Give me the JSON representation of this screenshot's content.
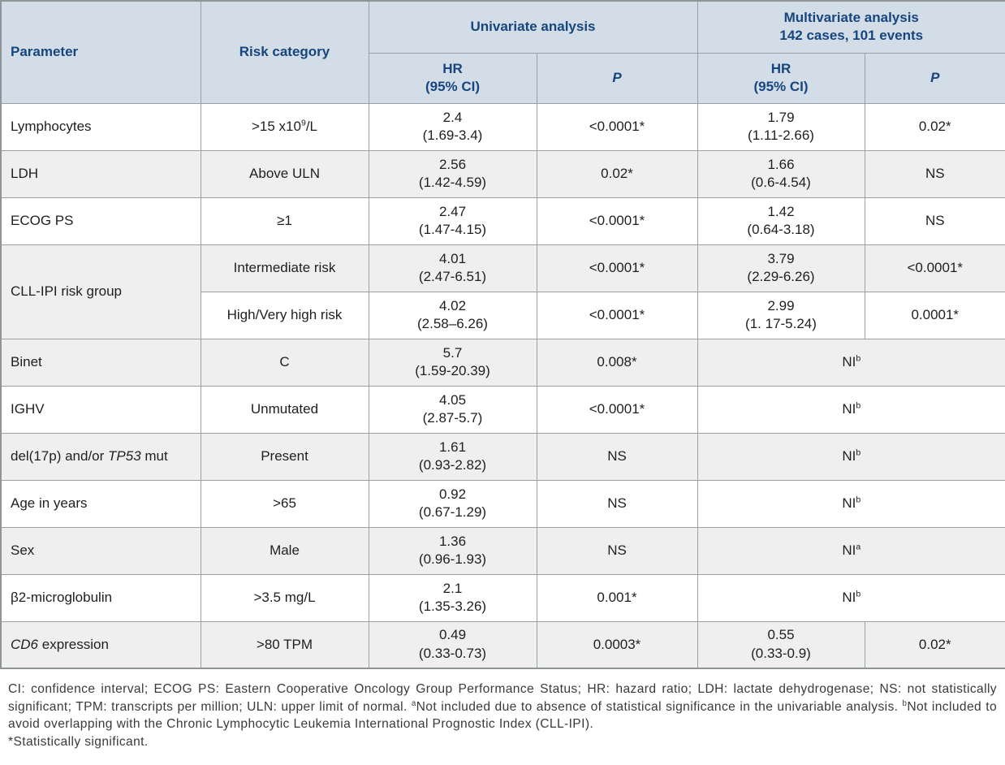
{
  "table": {
    "headers": {
      "parameter": "Parameter",
      "risk_category": "Risk category",
      "univariate": "Univariate analysis",
      "multivariate_line1": "Multivariate analysis",
      "multivariate_line2": "142 cases, 101 events",
      "hr_line1": "HR",
      "hr_line2": "(95% CI)",
      "p": "P"
    },
    "colors": {
      "header_bg": "#d2dde8",
      "header_text": "#17457e",
      "alt_row_bg": "#efefef",
      "border": "#9aa0a3"
    },
    "rows": [
      {
        "shade": false,
        "cells": [
          {
            "name": "parameter",
            "align": "left",
            "segs": [
              {
                "t": "Lymphocytes"
              }
            ]
          },
          {
            "name": "risk-category",
            "segs": [
              {
                "t": ">15 x10"
              },
              {
                "t": "9",
                "sup": true
              },
              {
                "t": "/L"
              }
            ]
          },
          {
            "name": "uni-hr",
            "lines": [
              "2.4",
              "(1.69-3.4)"
            ]
          },
          {
            "name": "uni-p",
            "segs": [
              {
                "t": "<0.0001*"
              }
            ]
          },
          {
            "name": "multi-hr",
            "lines": [
              "1.79",
              "(1.11-2.66)"
            ]
          },
          {
            "name": "multi-p",
            "segs": [
              {
                "t": "0.02*"
              }
            ]
          }
        ]
      },
      {
        "shade": true,
        "cells": [
          {
            "name": "parameter",
            "align": "left",
            "segs": [
              {
                "t": "LDH"
              }
            ]
          },
          {
            "name": "risk-category",
            "segs": [
              {
                "t": "Above ULN"
              }
            ]
          },
          {
            "name": "uni-hr",
            "lines": [
              "2.56",
              "(1.42-4.59)"
            ]
          },
          {
            "name": "uni-p",
            "segs": [
              {
                "t": "0.02*"
              }
            ]
          },
          {
            "name": "multi-hr",
            "lines": [
              "1.66",
              "(0.6-4.54)"
            ]
          },
          {
            "name": "multi-p",
            "segs": [
              {
                "t": "NS"
              }
            ]
          }
        ]
      },
      {
        "shade": false,
        "cells": [
          {
            "name": "parameter",
            "align": "left",
            "segs": [
              {
                "t": "ECOG PS"
              }
            ]
          },
          {
            "name": "risk-category",
            "segs": [
              {
                "t": "≥1"
              }
            ]
          },
          {
            "name": "uni-hr",
            "lines": [
              "2.47",
              "(1.47-4.15)"
            ]
          },
          {
            "name": "uni-p",
            "segs": [
              {
                "t": "<0.0001*"
              }
            ]
          },
          {
            "name": "multi-hr",
            "lines": [
              "1.42",
              "(0.64-3.18)"
            ]
          },
          {
            "name": "multi-p",
            "segs": [
              {
                "t": "NS"
              }
            ]
          }
        ]
      },
      {
        "shade": true,
        "cells": [
          {
            "name": "parameter",
            "align": "left",
            "rowspan": 2,
            "segs": [
              {
                "t": "CLL-IPI risk group"
              }
            ]
          },
          {
            "name": "risk-category",
            "segs": [
              {
                "t": "Intermediate risk"
              }
            ]
          },
          {
            "name": "uni-hr",
            "lines": [
              "4.01",
              "(2.47-6.51)"
            ]
          },
          {
            "name": "uni-p",
            "segs": [
              {
                "t": "<0.0001*"
              }
            ]
          },
          {
            "name": "multi-hr",
            "lines": [
              "3.79",
              "(2.29-6.26)"
            ]
          },
          {
            "name": "multi-p",
            "segs": [
              {
                "t": "<0.0001*"
              }
            ]
          }
        ]
      },
      {
        "shade": false,
        "cells": [
          {
            "name": "risk-category",
            "segs": [
              {
                "t": "High/Very high risk"
              }
            ]
          },
          {
            "name": "uni-hr",
            "lines": [
              "4.02",
              "(2.58–6.26)"
            ]
          },
          {
            "name": "uni-p",
            "segs": [
              {
                "t": "<0.0001*"
              }
            ]
          },
          {
            "name": "multi-hr",
            "lines": [
              "2.99",
              "(1. 17-5.24)"
            ]
          },
          {
            "name": "multi-p",
            "segs": [
              {
                "t": "0.0001*"
              }
            ]
          }
        ]
      },
      {
        "shade": true,
        "cells": [
          {
            "name": "parameter",
            "align": "left",
            "segs": [
              {
                "t": "Binet"
              }
            ]
          },
          {
            "name": "risk-category",
            "segs": [
              {
                "t": "C"
              }
            ]
          },
          {
            "name": "uni-hr",
            "lines": [
              "5.7",
              "(1.59-20.39)"
            ]
          },
          {
            "name": "uni-p",
            "segs": [
              {
                "t": "0.008*"
              }
            ]
          },
          {
            "name": "multi-ni",
            "colspan": 2,
            "segs": [
              {
                "t": "NI"
              },
              {
                "t": "b",
                "sup": true
              }
            ]
          }
        ]
      },
      {
        "shade": false,
        "cells": [
          {
            "name": "parameter",
            "align": "left",
            "segs": [
              {
                "t": "IGHV"
              }
            ]
          },
          {
            "name": "risk-category",
            "segs": [
              {
                "t": "Unmutated"
              }
            ]
          },
          {
            "name": "uni-hr",
            "lines": [
              "4.05",
              "(2.87-5.7)"
            ]
          },
          {
            "name": "uni-p",
            "segs": [
              {
                "t": "<0.0001*"
              }
            ]
          },
          {
            "name": "multi-ni",
            "colspan": 2,
            "segs": [
              {
                "t": "NI"
              },
              {
                "t": "b",
                "sup": true
              }
            ]
          }
        ]
      },
      {
        "shade": true,
        "cells": [
          {
            "name": "parameter",
            "align": "left",
            "segs": [
              {
                "t": "del(17p) and/or "
              },
              {
                "t": "TP53",
                "i": true
              },
              {
                "t": " mut"
              }
            ]
          },
          {
            "name": "risk-category",
            "segs": [
              {
                "t": "Present"
              }
            ]
          },
          {
            "name": "uni-hr",
            "lines": [
              "1.61",
              "(0.93-2.82)"
            ]
          },
          {
            "name": "uni-p",
            "segs": [
              {
                "t": "NS"
              }
            ]
          },
          {
            "name": "multi-ni",
            "colspan": 2,
            "segs": [
              {
                "t": "NI"
              },
              {
                "t": "b",
                "sup": true
              }
            ]
          }
        ]
      },
      {
        "shade": false,
        "cells": [
          {
            "name": "parameter",
            "align": "left",
            "segs": [
              {
                "t": "Age in years"
              }
            ]
          },
          {
            "name": "risk-category",
            "segs": [
              {
                "t": ">65"
              }
            ]
          },
          {
            "name": "uni-hr",
            "lines": [
              "0.92",
              "(0.67-1.29)"
            ]
          },
          {
            "name": "uni-p",
            "segs": [
              {
                "t": "NS"
              }
            ]
          },
          {
            "name": "multi-ni",
            "colspan": 2,
            "segs": [
              {
                "t": "NI"
              },
              {
                "t": "b",
                "sup": true
              }
            ]
          }
        ]
      },
      {
        "shade": true,
        "cells": [
          {
            "name": "parameter",
            "align": "left",
            "segs": [
              {
                "t": "Sex"
              }
            ]
          },
          {
            "name": "risk-category",
            "segs": [
              {
                "t": "Male"
              }
            ]
          },
          {
            "name": "uni-hr",
            "lines": [
              "1.36",
              "(0.96-1.93)"
            ]
          },
          {
            "name": "uni-p",
            "segs": [
              {
                "t": "NS"
              }
            ]
          },
          {
            "name": "multi-ni",
            "colspan": 2,
            "segs": [
              {
                "t": "NI"
              },
              {
                "t": "a",
                "sup": true
              }
            ]
          }
        ]
      },
      {
        "shade": false,
        "cells": [
          {
            "name": "parameter",
            "align": "left",
            "segs": [
              {
                "t": "β2-microglobulin"
              }
            ]
          },
          {
            "name": "risk-category",
            "segs": [
              {
                "t": ">3.5 mg/L"
              }
            ]
          },
          {
            "name": "uni-hr",
            "lines": [
              "2.1",
              "(1.35-3.26)"
            ]
          },
          {
            "name": "uni-p",
            "segs": [
              {
                "t": "0.001*"
              }
            ]
          },
          {
            "name": "multi-ni",
            "colspan": 2,
            "segs": [
              {
                "t": "NI"
              },
              {
                "t": "b",
                "sup": true
              }
            ]
          }
        ]
      },
      {
        "shade": true,
        "cells": [
          {
            "name": "parameter",
            "align": "left",
            "segs": [
              {
                "t": "CD6",
                "i": true
              },
              {
                "t": " expression"
              }
            ]
          },
          {
            "name": "risk-category",
            "segs": [
              {
                "t": ">80 TPM"
              }
            ]
          },
          {
            "name": "uni-hr",
            "lines": [
              "0.49",
              "(0.33-0.73)"
            ]
          },
          {
            "name": "uni-p",
            "segs": [
              {
                "t": "0.0003*"
              }
            ]
          },
          {
            "name": "multi-hr",
            "lines": [
              "0.55",
              "(0.33-0.9)"
            ]
          },
          {
            "name": "multi-p",
            "segs": [
              {
                "t": "0.02*"
              }
            ]
          }
        ]
      }
    ]
  },
  "footer": {
    "segments": [
      {
        "t": "CI: confidence interval; ECOG PS: Eastern Cooperative Oncology Group Performance Status; HR: hazard ratio; LDH: lactate dehydrogenase; NS: not statistically significant; TPM: transcripts per million; ULN: upper limit of normal. "
      },
      {
        "t": "a",
        "sup": true
      },
      {
        "t": "Not included due to absence of statistical significance in the univariable analysis. "
      },
      {
        "t": "b",
        "sup": true
      },
      {
        "t": "Not included to avoid overlapping with the Chronic Lymphocytic Leukemia International Prognostic Index (CLL-IPI)."
      },
      {
        "br": true
      },
      {
        "t": "*Statistically significant."
      }
    ]
  }
}
